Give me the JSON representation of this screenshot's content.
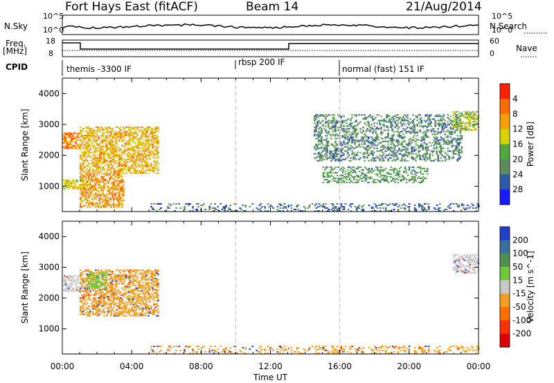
{
  "header": {
    "title": "Fort Hays East (fitACF)",
    "beam": "Beam 14",
    "date": "21/Aug/2014"
  },
  "top_panels": {
    "nsky_label": "N.Sky",
    "nsky_ticks": [
      "10^5",
      "10^0"
    ],
    "nsearch_label": "N.Search",
    "nsearch_ticks": [
      "10^5",
      "10^0"
    ],
    "freq_label": "Freq.",
    "freq_unit": "[MHz]",
    "freq_ticks": [
      "18",
      "8"
    ],
    "nave_label": "Nave",
    "nave_ticks": [
      "60",
      "0"
    ],
    "cpid_label": "CPID",
    "cpid_segments": [
      "themis -3300 IF",
      "rbsp 200 IF",
      "normal (fast) 151 IF"
    ]
  },
  "chart_data": [
    {
      "type": "heatmap",
      "panel": "power",
      "xlabel": "Time UT",
      "ylabel": "Slant Range [km]",
      "x_ticks": [
        "00:00",
        "04:00",
        "08:00",
        "12:00",
        "16:00",
        "20:00",
        "00:00"
      ],
      "y_ticks": [
        "1000",
        "2000",
        "3000",
        "4000"
      ],
      "xlim_hours": [
        0,
        24
      ],
      "ylim_km": [
        180,
        4500
      ],
      "colorbar": {
        "label": "Power [dB]",
        "ticks": [
          "4",
          "8",
          "12",
          "16",
          "20",
          "24",
          "28"
        ],
        "range": [
          0,
          30
        ],
        "colors": [
          "#1a1aff",
          "#2a5aa8",
          "#5c8c5c",
          "#4eaa3a",
          "#d9d400",
          "#f5a000",
          "#ff6a00",
          "#ff2000"
        ]
      },
      "features": [
        {
          "name": "early band",
          "time_h": [
            0.0,
            1.0
          ],
          "range_km": [
            2200,
            2700
          ],
          "level_db": 24
        },
        {
          "name": "rising arc",
          "time_h": [
            1.0,
            5.5
          ],
          "range_km": [
            1400,
            2900
          ],
          "level_db": 20
        },
        {
          "name": "descending branch",
          "time_h": [
            1.0,
            3.5
          ],
          "range_km": [
            300,
            1400
          ],
          "level_db": 22
        },
        {
          "name": "low range band",
          "time_h": [
            0.0,
            1.5
          ],
          "range_km": [
            900,
            1200
          ],
          "level_db": 18
        },
        {
          "name": "evening arc upper",
          "time_h": [
            14.5,
            23.0
          ],
          "range_km": [
            1800,
            3300
          ],
          "level_db": 8
        },
        {
          "name": "evening arc lower",
          "time_h": [
            15.0,
            21.0
          ],
          "range_km": [
            1100,
            1600
          ],
          "level_db": 10
        },
        {
          "name": "late cluster",
          "time_h": [
            22.5,
            24.0
          ],
          "range_km": [
            2800,
            3400
          ],
          "level_db": 16
        },
        {
          "name": "ground scatter near range",
          "time_h": [
            5.0,
            24.0
          ],
          "range_km": [
            180,
            450
          ],
          "level_db": 6
        }
      ]
    },
    {
      "type": "heatmap",
      "panel": "velocity",
      "xlabel": "Time UT",
      "ylabel": "Slant Range [km]",
      "x_ticks": [
        "00:00",
        "04:00",
        "08:00",
        "12:00",
        "16:00",
        "20:00",
        "00:00"
      ],
      "y_ticks": [
        "1000",
        "2000",
        "3000",
        "4000"
      ],
      "xlim_hours": [
        0,
        24
      ],
      "ylim_km": [
        180,
        4500
      ],
      "colorbar": {
        "label": "Velocity [m s^-1]",
        "ticks": [
          "200",
          "100",
          "50",
          "15",
          "-15",
          "-50",
          "-100",
          "-200"
        ],
        "colors": [
          "#2040c8",
          "#3a6ea0",
          "#4f8f4f",
          "#6ec83a",
          "#c8c8c8",
          "#f0a020",
          "#ff7000",
          "#ff3000",
          "#e00000"
        ]
      },
      "features": [
        {
          "name": "early band",
          "time_h": [
            0.0,
            1.0
          ],
          "range_km": [
            2200,
            2700
          ],
          "velocity": "-15..15"
        },
        {
          "name": "rising arc",
          "time_h": [
            1.0,
            5.5
          ],
          "range_km": [
            1400,
            2900
          ],
          "velocity": "-50..-15"
        },
        {
          "name": "green patch",
          "time_h": [
            1.5,
            2.5
          ],
          "range_km": [
            2300,
            2800
          ],
          "velocity": "15..50"
        },
        {
          "name": "evening arcs",
          "time_h": [
            14.5,
            23.0
          ],
          "range_km": [
            1100,
            3300
          ],
          "velocity": "-15..15"
        },
        {
          "name": "ground scatter near range",
          "time_h": [
            5.0,
            24.0
          ],
          "range_km": [
            180,
            450
          ],
          "velocity": "-50..-15"
        }
      ]
    }
  ]
}
